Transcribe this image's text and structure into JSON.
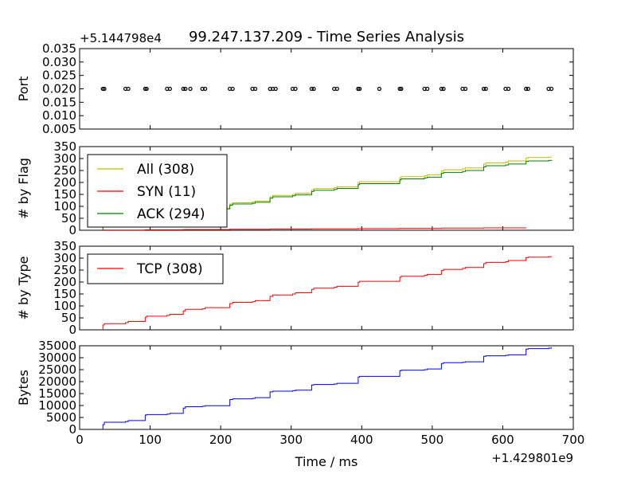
{
  "chart_data": {
    "type": "line",
    "title": "99.247.137.209 - Time Series Analysis",
    "xlabel": "Time / ms",
    "x_offset_label": "+1.429801e9",
    "xlim": [
      0,
      700
    ],
    "xticks": [
      "0",
      "100",
      "200",
      "300",
      "400",
      "500",
      "600",
      "700"
    ],
    "grid": false,
    "panels": [
      {
        "id": "port",
        "type": "scatter",
        "ylabel": "Port",
        "offset_label": "+5.144798e4",
        "ylim": [
          0.005,
          0.035
        ],
        "yticks": [
          "0.005",
          "0.010",
          "0.015",
          "0.020",
          "0.025",
          "0.030",
          "0.035"
        ],
        "series": [
          {
            "color": "#000000",
            "x": [
              33,
              35,
              65,
              69,
              93,
              95,
              124,
              128,
              147,
              150,
              157,
              174,
              178,
              213,
              217,
              245,
              249,
              270,
              274,
              278,
              302,
              306,
              329,
              332,
              361,
              365,
              395,
              397,
              425,
              454,
              456,
              489,
              493,
              513,
              516,
              543,
              547,
              573,
              576,
              604,
              608,
              633,
              636,
              665,
              669
            ],
            "y": [
              0.02,
              0.02,
              0.02,
              0.02,
              0.02,
              0.02,
              0.02,
              0.02,
              0.02,
              0.02,
              0.02,
              0.02,
              0.02,
              0.02,
              0.02,
              0.02,
              0.02,
              0.02,
              0.02,
              0.02,
              0.02,
              0.02,
              0.02,
              0.02,
              0.02,
              0.02,
              0.02,
              0.02,
              0.02,
              0.02,
              0.02,
              0.02,
              0.02,
              0.02,
              0.02,
              0.02,
              0.02,
              0.02,
              0.02,
              0.02,
              0.02,
              0.02,
              0.02,
              0.02,
              0.02
            ]
          }
        ]
      },
      {
        "id": "flag",
        "type": "line",
        "ylabel": "# by Flag",
        "ylim": [
          0,
          350
        ],
        "yticks": [
          "0",
          "50",
          "100",
          "150",
          "200",
          "250",
          "300",
          "350"
        ],
        "legend": "upper-left",
        "series": [
          {
            "name": "All (308)",
            "color": "#bfbf00",
            "x": [
              33,
              35,
              65,
              69,
              93,
              95,
              124,
              128,
              147,
              150,
              174,
              178,
              213,
              217,
              245,
              249,
              270,
              274,
              302,
              306,
              329,
              332,
              361,
              365,
              395,
              397,
              454,
              456,
              489,
              493,
              513,
              516,
              543,
              547,
              573,
              576,
              604,
              608,
              633,
              636,
              665,
              669
            ],
            "y": [
              20,
              26,
              30,
              35,
              53,
              57,
              61,
              65,
              79,
              86,
              88,
              93,
              110,
              115,
              118,
              122,
              140,
              146,
              150,
              155,
              169,
              174,
              178,
              182,
              199,
              203,
              220,
              224,
              228,
              232,
              248,
              253,
              257,
              261,
              277,
              282,
              285,
              290,
              302,
              304,
              306,
              308
            ]
          },
          {
            "name": "SYN (11)",
            "color": "#ff0000",
            "x": [
              33,
              93,
              147,
              213,
              270,
              329,
              395,
              454,
              513,
              573,
              633
            ],
            "y": [
              1,
              2,
              3,
              4,
              5,
              6,
              7,
              8,
              9,
              10,
              11
            ]
          },
          {
            "name": "ACK (294)",
            "color": "#008000",
            "x": [
              33,
              35,
              65,
              69,
              93,
              95,
              124,
              128,
              147,
              150,
              174,
              178,
              213,
              217,
              245,
              249,
              270,
              274,
              302,
              306,
              329,
              332,
              361,
              365,
              395,
              397,
              454,
              456,
              489,
              493,
              513,
              516,
              543,
              547,
              573,
              576,
              604,
              608,
              633,
              636,
              665,
              669
            ],
            "y": [
              18,
              24,
              28,
              33,
              50,
              54,
              58,
              62,
              75,
              82,
              84,
              89,
              105,
              110,
              113,
              117,
              134,
              140,
              144,
              148,
              162,
              167,
              171,
              175,
              191,
              195,
              211,
              215,
              219,
              222,
              238,
              242,
              246,
              250,
              265,
              270,
              273,
              277,
              288,
              290,
              292,
              294
            ]
          }
        ]
      },
      {
        "id": "type",
        "type": "line",
        "ylabel": "# by Type",
        "ylim": [
          0,
          350
        ],
        "yticks": [
          "0",
          "50",
          "100",
          "150",
          "200",
          "250",
          "300",
          "350"
        ],
        "legend": "upper-left",
        "series": [
          {
            "name": "TCP (308)",
            "color": "#ff0000",
            "x": [
              33,
              35,
              65,
              69,
              93,
              95,
              124,
              128,
              147,
              150,
              174,
              178,
              213,
              217,
              245,
              249,
              270,
              274,
              302,
              306,
              329,
              332,
              361,
              365,
              395,
              397,
              454,
              456,
              489,
              493,
              513,
              516,
              543,
              547,
              573,
              576,
              604,
              608,
              633,
              636,
              665,
              669
            ],
            "y": [
              20,
              26,
              30,
              35,
              53,
              57,
              61,
              65,
              79,
              86,
              88,
              93,
              110,
              115,
              118,
              122,
              140,
              146,
              150,
              155,
              169,
              174,
              178,
              182,
              199,
              203,
              220,
              224,
              228,
              232,
              248,
              253,
              257,
              261,
              277,
              282,
              285,
              290,
              302,
              304,
              306,
              308
            ]
          }
        ]
      },
      {
        "id": "bytes",
        "type": "line",
        "ylabel": "Bytes",
        "ylim": [
          0,
          35000
        ],
        "yticks": [
          "0",
          "5000",
          "10000",
          "15000",
          "20000",
          "25000",
          "30000",
          "35000"
        ],
        "series": [
          {
            "color": "#0000ff",
            "x": [
              33,
              35,
              65,
              69,
              93,
              95,
              124,
              128,
              147,
              150,
              174,
              178,
              213,
              217,
              245,
              249,
              270,
              274,
              302,
              306,
              329,
              332,
              361,
              365,
              395,
              397,
              454,
              456,
              489,
              493,
              513,
              516,
              543,
              547,
              573,
              576,
              604,
              608,
              633,
              636,
              665,
              669
            ],
            "y": [
              2000,
              3000,
              3300,
              3700,
              6000,
              6200,
              6400,
              6700,
              8900,
              9500,
              9700,
              9900,
              12500,
              12800,
              13000,
              13300,
              15700,
              16000,
              16200,
              16400,
              18600,
              18800,
              19000,
              19300,
              21900,
              22200,
              24600,
              24800,
              25000,
              25300,
              27600,
              27900,
              28100,
              28300,
              30600,
              30800,
              31000,
              31200,
              33600,
              33800,
              34000,
              34300
            ]
          }
        ]
      }
    ]
  }
}
